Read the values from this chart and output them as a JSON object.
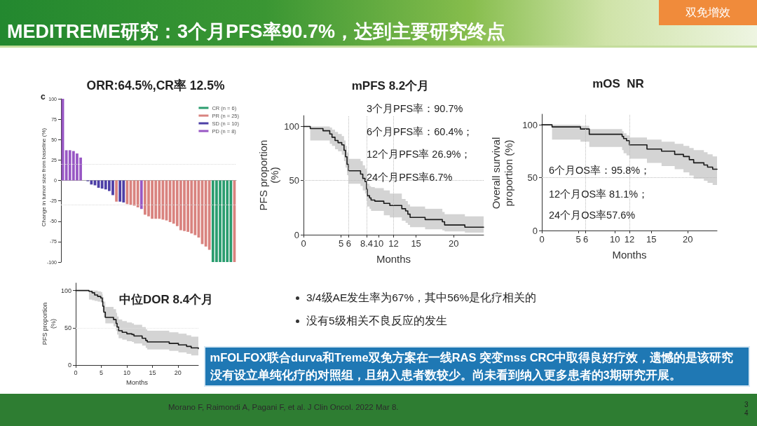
{
  "chart_data": [
    {
      "type": "other",
      "title": "MEDITREME研究：3个月PFS率90.7%，达到主要研究终点",
      "annotations": [
        "双免增效"
      ]
    },
    {
      "type": "bar",
      "title": "ORR:64.5%,CR率 12.5%",
      "ylabel": "Change in tumor size from baseline (%)",
      "annotations": [
        "c"
      ],
      "categories": [
        null,
        null,
        null,
        null,
        null,
        null,
        null,
        null,
        null,
        null,
        null,
        null,
        null,
        null,
        null,
        null,
        null,
        null,
        null,
        null,
        null,
        null,
        null,
        null,
        null,
        null,
        null,
        null,
        null,
        null,
        null,
        null,
        null,
        null,
        null,
        null,
        null,
        null,
        null,
        null,
        null,
        null,
        null,
        null,
        null,
        null,
        null,
        null,
        null
      ],
      "stacked": true,
      "series": [
        {
          "name": "CR (n = 6)",
          "color": "#2a9d6f",
          "values": [
            null,
            null,
            null,
            null,
            null,
            null,
            null,
            null,
            null,
            null,
            null,
            null,
            null,
            null,
            null,
            null,
            null,
            null,
            null,
            null,
            null,
            null,
            null,
            null,
            null,
            null,
            null,
            null,
            null,
            null,
            null,
            null,
            null,
            null,
            null,
            null,
            null,
            null,
            null,
            null,
            null,
            null,
            -100,
            -100,
            -100,
            -100,
            -100,
            -100,
            null
          ]
        },
        {
          "name": "PR (n = 25)",
          "color": "#d9837f",
          "values": [
            null,
            null,
            null,
            null,
            null,
            null,
            null,
            null,
            null,
            null,
            null,
            null,
            null,
            null,
            null,
            -26,
            null,
            null,
            -29,
            -30,
            -31,
            -33,
            null,
            -42,
            -44,
            -47,
            -47,
            -47,
            -48,
            -49,
            -51,
            -53,
            -56,
            -61,
            -62,
            -63,
            -65,
            -67,
            -70,
            -78,
            -81,
            -85,
            null,
            null,
            null,
            null,
            null,
            null,
            -100
          ]
        },
        {
          "name": "SD (n = 10)",
          "color": "#4d3fa6",
          "values": [
            null,
            null,
            null,
            null,
            null,
            null,
            null,
            -1,
            -5,
            -6,
            -9,
            -10,
            -11,
            -13,
            -18,
            null,
            -26,
            -27,
            null,
            null,
            null,
            null,
            null,
            null,
            null,
            null,
            null,
            null,
            null,
            null,
            null,
            null,
            null,
            null,
            null,
            null,
            null,
            null,
            null,
            null,
            null,
            null,
            null,
            null,
            null,
            null,
            null,
            null,
            null
          ]
        },
        {
          "name": "PD (n = 8)",
          "color": "#9857c4",
          "values": [
            100,
            37,
            37,
            36,
            33,
            28,
            0,
            null,
            null,
            null,
            null,
            null,
            null,
            null,
            null,
            null,
            null,
            null,
            null,
            null,
            null,
            null,
            -35,
            null,
            null,
            null,
            null,
            null,
            null,
            null,
            null,
            null,
            null,
            null,
            null,
            null,
            null,
            null,
            null,
            null,
            null,
            null,
            null,
            null,
            null,
            null,
            null,
            null,
            null
          ]
        }
      ],
      "ylim": [
        -100,
        100
      ],
      "yticks": [
        -100,
        -75,
        -50,
        -25,
        0,
        25,
        50,
        75,
        100
      ],
      "ref_lines": [
        {
          "axis": "y",
          "value": 20,
          "color": "#d9d9d9",
          "line_style": "dotted"
        },
        {
          "axis": "y",
          "value": -30,
          "color": "#d9d9d9",
          "line_style": "dotted"
        }
      ],
      "legend": "top right"
    },
    {
      "type": "step",
      "title": "mPFS 8.2个月",
      "xlabel": "Months",
      "ylabel": "PFS proportion (%)",
      "annotations": [
        "3个月PFS率：90.7%",
        "6个月PFS率：60.4%；",
        "12个月PFS率 26.9%；",
        "24个月PFS率6.7%"
      ],
      "series": [
        {
          "color": "#1a1a1a",
          "x": [
            0,
            0.9,
            2.6,
            3.5,
            3.8,
            4.2,
            4.6,
            5.1,
            5.4,
            5.6,
            5.8,
            6,
            7.6,
            7.9,
            8.2,
            8.4,
            8.5,
            8.8,
            9,
            9.5,
            10.7,
            11.5,
            13.1,
            13.6,
            13.9,
            14.2,
            16.2,
            18.5,
            18.8,
            21.5,
            24
          ],
          "values": [
            100,
            98,
            96,
            93,
            90,
            87,
            85,
            83,
            78,
            72,
            65,
            59,
            56,
            52,
            49,
            42,
            36,
            34,
            32,
            31,
            29,
            27,
            24,
            22,
            19,
            16,
            14,
            12,
            9,
            7,
            7
          ],
          "lower": [
            100,
            87,
            87,
            84,
            82,
            79,
            77,
            74,
            68,
            62,
            55,
            47,
            45,
            41,
            38,
            31,
            26,
            24,
            22,
            22,
            18,
            16,
            13,
            11,
            9,
            7,
            5,
            4,
            3,
            2,
            2
          ],
          "upper": [
            100,
            100,
            100,
            99,
            97,
            95,
            93,
            91,
            87,
            82,
            76,
            70,
            68,
            64,
            61,
            54,
            47,
            45,
            44,
            43,
            41,
            38,
            33,
            31,
            28,
            26,
            24,
            21,
            19,
            17,
            17
          ]
        }
      ],
      "xlim": [
        0,
        24
      ],
      "xticks": [
        0,
        5,
        6,
        8.4,
        10,
        12,
        15,
        20
      ],
      "ylim": [
        0,
        110
      ],
      "yticks": [
        0,
        50,
        100
      ],
      "ref_lines": [
        {
          "axis": "x",
          "value": 6,
          "color": "#bbbbbb",
          "line_style": "dotted"
        },
        {
          "axis": "x",
          "value": 8.4,
          "color": "#bbbbbb",
          "line_style": "dotted"
        },
        {
          "axis": "x",
          "value": 12,
          "color": "#bbbbbb",
          "line_style": "dotted"
        },
        {
          "axis": "y",
          "value": 50,
          "color": "#bbbbbb",
          "line_style": "dotted"
        }
      ],
      "marker": "none"
    },
    {
      "type": "step",
      "title": "mOS  NR",
      "xlabel": "Months",
      "ylabel": "Overall survival proportion (%)",
      "annotations": [
        "6个月OS率：95.8%；",
        "12个月OS率 81.1%；",
        "24个月OS率57.6%"
      ],
      "series": [
        {
          "color": "#1a1a1a",
          "x": [
            0,
            1.4,
            5.3,
            6.5,
            11,
            11.2,
            11.6,
            12,
            14.4,
            16.4,
            18.2,
            19.4,
            20.2,
            20.8,
            22.2,
            22.7,
            23.4,
            24
          ],
          "values": [
            100,
            98,
            96,
            91,
            89,
            87,
            85,
            81,
            77,
            75,
            72,
            70,
            67,
            64,
            62,
            60,
            58,
            58
          ],
          "lower": [
            100,
            86,
            84,
            79,
            76,
            73,
            71,
            68,
            64,
            61,
            58,
            55,
            52,
            49,
            47,
            45,
            43,
            42
          ],
          "upper": [
            100,
            100,
            99,
            96,
            94,
            92,
            90,
            88,
            86,
            84,
            82,
            80,
            78,
            76,
            74,
            72,
            70,
            70
          ]
        }
      ],
      "xlim": [
        0,
        24
      ],
      "xticks": [
        0,
        5,
        6,
        10,
        12,
        15,
        20
      ],
      "ylim": [
        0,
        110
      ],
      "yticks": [
        0,
        50,
        100
      ],
      "ref_lines": [
        {
          "axis": "x",
          "value": 6,
          "color": "#bbbbbb",
          "line_style": "dotted"
        },
        {
          "axis": "x",
          "value": 12,
          "color": "#bbbbbb",
          "line_style": "dotted"
        },
        {
          "axis": "y",
          "value": 50,
          "color": "#bbbbbb",
          "line_style": "dotted"
        }
      ],
      "marker": "none"
    },
    {
      "type": "step",
      "title": "中位DOR 8.4个月",
      "xlabel": "Months",
      "ylabel": "PFS proportion (%)",
      "series": [
        {
          "color": "#1a1a1a",
          "x": [
            0,
            2.6,
            3.2,
            3.7,
            4.3,
            4.9,
            5.2,
            5.3,
            5.5,
            5.8,
            7.4,
            7.9,
            8.1,
            8.4,
            9.1,
            10,
            11,
            11.4,
            13,
            13.7,
            14,
            18.3,
            20.1,
            21.7,
            22.6,
            24
          ],
          "values": [
            100,
            99,
            97,
            94,
            92,
            90,
            85,
            79,
            71,
            64,
            61,
            56,
            51,
            46,
            44,
            42,
            41,
            39,
            36,
            33,
            31,
            29,
            27,
            25,
            23,
            22
          ],
          "lower": [
            100,
            88,
            87,
            86,
            85,
            84,
            78,
            72,
            64,
            56,
            52,
            46,
            41,
            36,
            34,
            32,
            31,
            29,
            26,
            23,
            21,
            19,
            17,
            15,
            13,
            12
          ],
          "upper": [
            100,
            100,
            100,
            100,
            99,
            98,
            95,
            91,
            85,
            78,
            75,
            70,
            65,
            61,
            59,
            57,
            56,
            54,
            51,
            48,
            46,
            44,
            42,
            40,
            38,
            37
          ]
        }
      ],
      "xlim": [
        0,
        24
      ],
      "xticks": [
        0,
        5,
        10,
        15,
        20
      ],
      "ylim": [
        0,
        110
      ],
      "yticks": [
        0,
        50,
        100
      ],
      "ref_lines": [
        {
          "axis": "y",
          "value": 50,
          "color": "#e2e2e2",
          "line_style": "dotted"
        }
      ],
      "marker": "none"
    },
    {
      "type": "other",
      "annotations": [
        "3/4级AE发生率为67%，其中56%是化疗相关的",
        "没有5级相关不良反应的发生",
        "mFOLFOX联合durva和Treme双免方案在一线RAS 突变mss CRC中取得良好疗效，遗憾的是该研究没有设立单纯化疗的对照组，且纳入患者数较少。尚未看到纳入更多患者的3期研究开展。",
        "Morano F, Raimondi A, Pagani F, et al. J Clin Oncol. 2022 Mar 8.",
        "34"
      ]
    }
  ]
}
